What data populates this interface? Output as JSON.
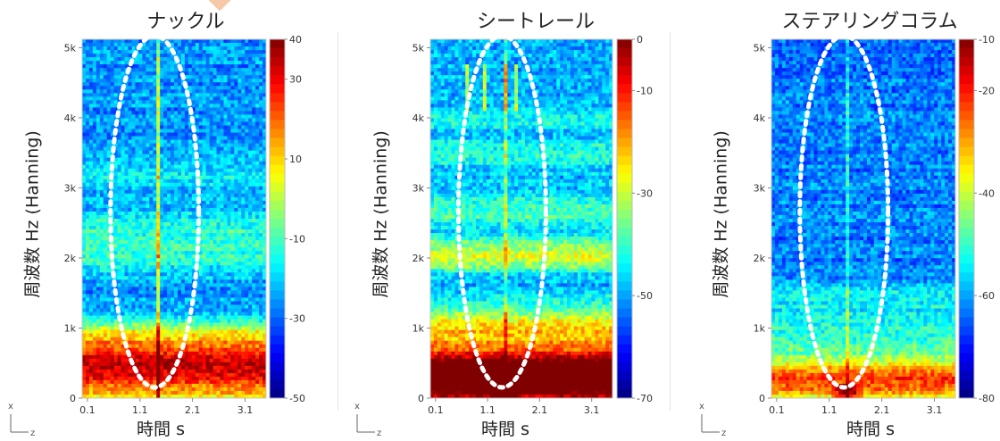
{
  "chart_data": [
    {
      "type": "heatmap",
      "title": "ナックル",
      "xlabel": "時間 s",
      "ylabel": "周波数 Hz (Hanning)",
      "x_ticks": [
        "0.1",
        "1.1",
        "2.1",
        "3.1"
      ],
      "xlim": [
        0.0,
        3.5
      ],
      "y_ticks": [
        "0",
        "1k",
        "2k",
        "3k",
        "4k",
        "5k"
      ],
      "ylim": [
        0,
        5120
      ],
      "colorbar_ticks": [
        "40",
        "30",
        "10",
        "-10",
        "-30",
        "-50"
      ],
      "colorbar_range": [
        -50,
        40
      ],
      "axis_corner": {
        "x": "x",
        "z": "z"
      },
      "annotation": "white dotted ellipse around the impulse near t≈1.4 s"
    },
    {
      "type": "heatmap",
      "title": "シートレール",
      "xlabel": "時間 s",
      "ylabel": "周波数 Hz (Hanning)",
      "x_ticks": [
        "0.1",
        "1.1",
        "2.1",
        "3.1"
      ],
      "xlim": [
        0.0,
        3.5
      ],
      "y_ticks": [
        "0",
        "1k",
        "2k",
        "3k",
        "4k",
        "5k"
      ],
      "ylim": [
        0,
        5120
      ],
      "colorbar_ticks": [
        "0",
        "-10",
        "-30",
        "-50",
        "-70"
      ],
      "colorbar_range": [
        -70,
        0
      ],
      "axis_corner": {
        "x": "x",
        "z": "z"
      },
      "annotation": "white dotted ellipse around the impulse near t≈1.4 s"
    },
    {
      "type": "heatmap",
      "title": "ステアリングコラム",
      "xlabel": "時間 s",
      "ylabel": "周波数 Hz (Hanning)",
      "x_ticks": [
        "0.1",
        "1.1",
        "2.1",
        "3.1"
      ],
      "xlim": [
        0.0,
        3.5
      ],
      "y_ticks": [
        "0",
        "1k",
        "2k",
        "3k",
        "4k",
        "5k"
      ],
      "ylim": [
        0,
        5120
      ],
      "colorbar_ticks": [
        "-10",
        "-20",
        "-40",
        "-60",
        "-80"
      ],
      "colorbar_range": [
        -80,
        -10
      ],
      "axis_corner": {
        "x": "x",
        "z": "z"
      },
      "annotation": "white dotted ellipse around the impulse near t≈1.4 s"
    }
  ]
}
